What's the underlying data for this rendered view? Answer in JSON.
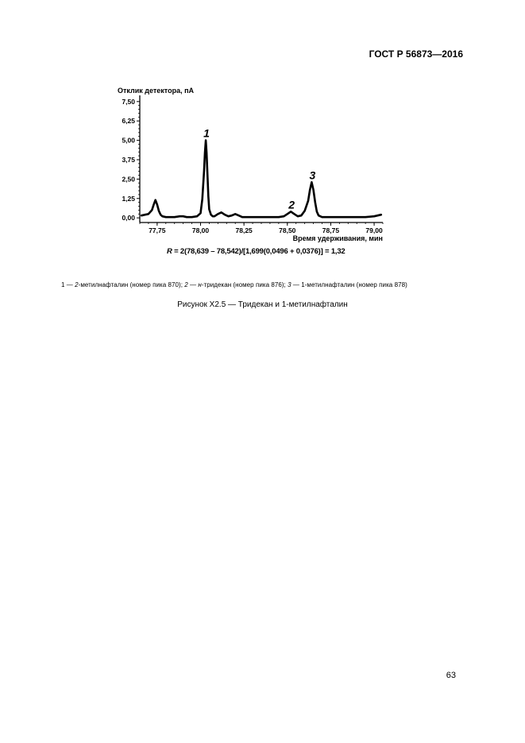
{
  "header": {
    "doc_id": "ГОСТ Р 56873—2016"
  },
  "chart_data": {
    "type": "line",
    "ylabel": "Отклик детектора, пА",
    "xlabel": "Время удерживания, мин",
    "xlim": [
      77.65,
      79.05
    ],
    "ylim": [
      -0.3,
      7.9
    ],
    "xticks": [
      77.75,
      78.0,
      78.25,
      78.5,
      78.75,
      79.0
    ],
    "xtick_labels": [
      "77,75",
      "78,00",
      "78,25",
      "78,50",
      "78,75",
      "79,00"
    ],
    "yticks": [
      0.0,
      1.25,
      2.5,
      3.75,
      5.0,
      6.25,
      7.5
    ],
    "ytick_labels": [
      "0,00",
      "1,25",
      "2,50",
      "3,75",
      "5,00",
      "6,25",
      "7,50"
    ],
    "series": [
      {
        "x": [
          77.66,
          77.68,
          77.7,
          77.72,
          77.73,
          77.74,
          77.75,
          77.76,
          77.77,
          77.78,
          77.8,
          77.82,
          77.85,
          77.88,
          77.9,
          77.92,
          77.95,
          77.98,
          78.0,
          78.01,
          78.02,
          78.025,
          78.03,
          78.035,
          78.04,
          78.045,
          78.05,
          78.06,
          78.07,
          78.08,
          78.1,
          78.12,
          78.14,
          78.16,
          78.18,
          78.2,
          78.22,
          78.24,
          78.26,
          78.3,
          78.35,
          78.4,
          78.45,
          78.48,
          78.5,
          78.52,
          78.54,
          78.56,
          78.58,
          78.6,
          78.62,
          78.63,
          78.64,
          78.65,
          78.66,
          78.67,
          78.68,
          78.7,
          78.72,
          78.75,
          78.8,
          78.85,
          78.9,
          78.95,
          79.0,
          79.04
        ],
        "y": [
          0.15,
          0.2,
          0.25,
          0.5,
          0.85,
          1.15,
          0.85,
          0.45,
          0.2,
          0.1,
          0.05,
          0.05,
          0.05,
          0.1,
          0.1,
          0.05,
          0.05,
          0.1,
          0.3,
          1.2,
          3.0,
          4.2,
          5.0,
          4.2,
          2.8,
          1.4,
          0.55,
          0.2,
          0.1,
          0.1,
          0.25,
          0.35,
          0.2,
          0.1,
          0.15,
          0.25,
          0.15,
          0.05,
          0.05,
          0.05,
          0.05,
          0.05,
          0.05,
          0.1,
          0.25,
          0.4,
          0.25,
          0.1,
          0.15,
          0.45,
          1.1,
          1.8,
          2.3,
          1.8,
          1.0,
          0.4,
          0.15,
          0.05,
          0.05,
          0.05,
          0.05,
          0.05,
          0.05,
          0.05,
          0.1,
          0.2
        ]
      }
    ],
    "peaks": [
      {
        "label": "1",
        "x": 78.03,
        "y": 5.0
      },
      {
        "label": "2",
        "x": 78.52,
        "y": 0.4
      },
      {
        "label": "3",
        "x": 78.64,
        "y": 2.3
      }
    ]
  },
  "formula": {
    "var": "R",
    "text": " = 2(78,639 – 78,542)/[1,699(0,0496 + 0,0376)] = 1,32"
  },
  "legend": {
    "n1": "1",
    "t1": " — ",
    "i1": "2",
    "t2": "-метилнафталин (номер пика 870); ",
    "n2": "2",
    "t3": " — ",
    "i2": "н",
    "t4": "-тридекан (номер пика 876); ",
    "n3": "3",
    "t5": " — 1-метилнафталин (номер пика 878)"
  },
  "caption": "Рисунок Х2.5 — Тридекан и 1-метилнафталин",
  "page_number": "63"
}
